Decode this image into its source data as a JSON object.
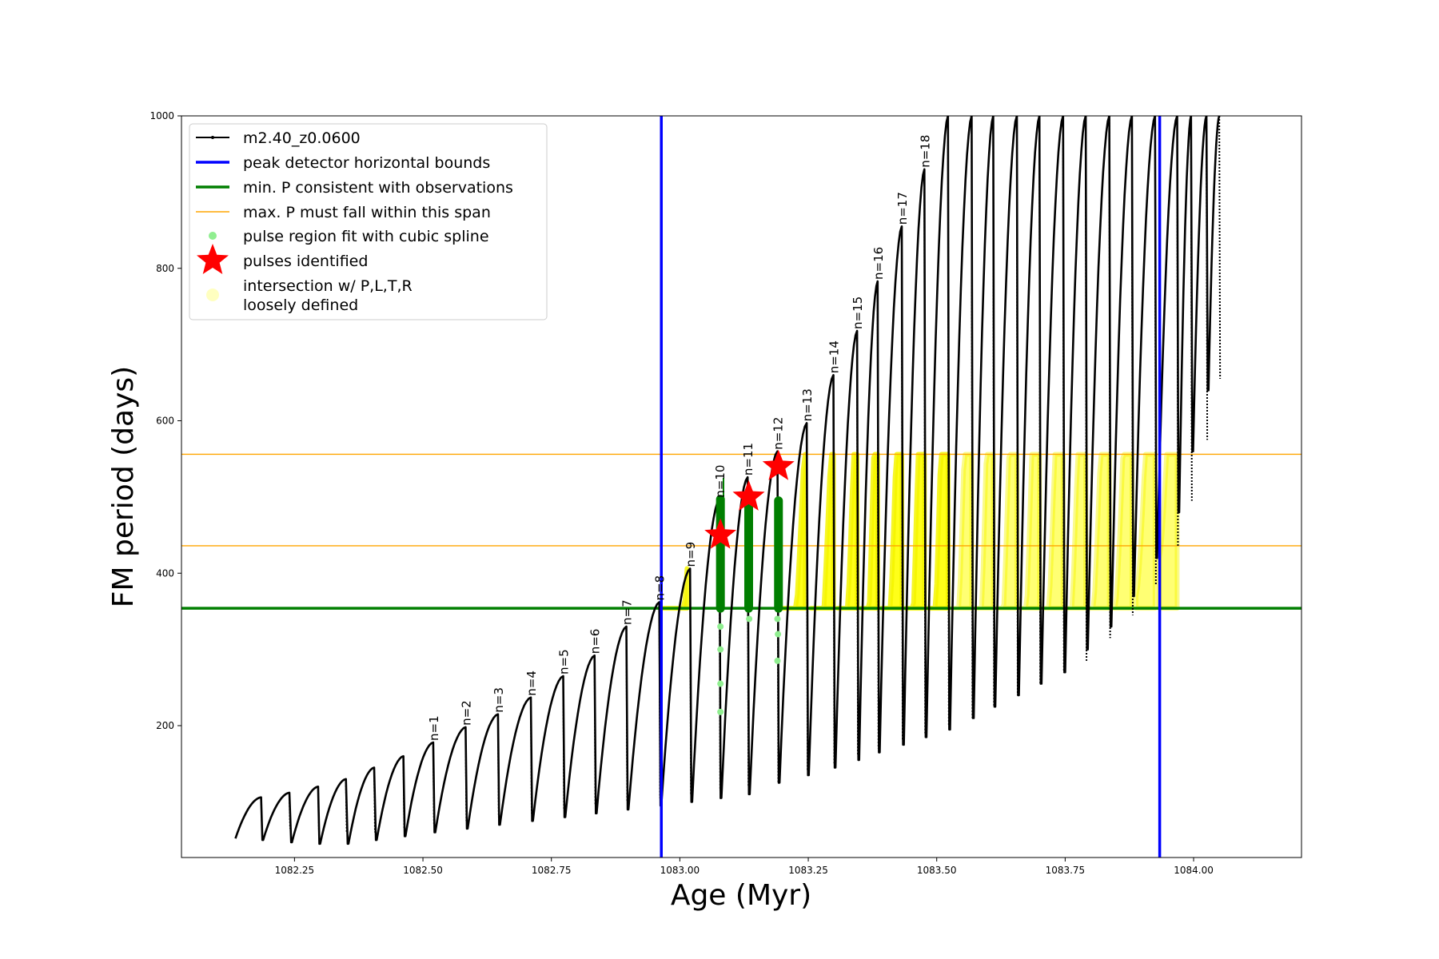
{
  "chart_data": {
    "type": "line",
    "xlabel": "Age (Myr)",
    "ylabel": "FM period (days)",
    "xlim": [
      1082.03,
      1084.21
    ],
    "ylim": [
      27,
      1000
    ],
    "x_ticks": [
      1082.25,
      1082.5,
      1082.75,
      1083.0,
      1083.25,
      1083.5,
      1083.75,
      1084.0
    ],
    "x_tick_labels": [
      "1082.25",
      "1082.50",
      "1082.75",
      "1083.00",
      "1083.25",
      "1083.50",
      "1083.75",
      "1084.00"
    ],
    "y_ticks": [
      200,
      400,
      600,
      800,
      1000
    ],
    "y_tick_labels": [
      "200",
      "400",
      "600",
      "800",
      "1000"
    ],
    "grid": false,
    "legend_position": "top-left",
    "legend": [
      {
        "label": "m2.40_z0.0600",
        "marker": "line-dot",
        "color": "#000000"
      },
      {
        "label": "peak detector horizontal bounds",
        "marker": "line",
        "color": "#0000ff"
      },
      {
        "label": "min. P consistent with observations",
        "marker": "line",
        "color": "#007f00"
      },
      {
        "label": "max. P must fall within this span",
        "marker": "thin-line",
        "color": "#ffa500"
      },
      {
        "label": "pulse region fit with cubic spline",
        "marker": "dot",
        "color": "#90ee90"
      },
      {
        "label": "pulses identified",
        "marker": "star",
        "color": "#ff0000"
      },
      {
        "label": "intersection w/ P,L,T,R",
        "marker": "circle",
        "color": "#ffffc0"
      },
      {
        "label": "loosely defined",
        "marker": "none",
        "color": "#ffffc0"
      }
    ],
    "vertical_lines": [
      {
        "x": 1082.964,
        "color": "#0000ff"
      },
      {
        "x": 1083.934,
        "color": "#0000ff"
      }
    ],
    "horizontal_lines": [
      {
        "y": 354,
        "color": "#007f00",
        "width": "thick"
      },
      {
        "y": 436,
        "color": "#ffa500",
        "width": "thin"
      },
      {
        "y": 556,
        "color": "#ffa500",
        "width": "thin"
      }
    ],
    "series": [
      {
        "name": "m2.40_z0.0600",
        "color": "#000000",
        "pulses": [
          {
            "start": 1082.135,
            "end": 1082.185,
            "min": 52,
            "max": 106
          },
          {
            "start": 1082.189,
            "end": 1082.24,
            "min": 50,
            "max": 112
          },
          {
            "start": 1082.245,
            "end": 1082.296,
            "min": 47,
            "max": 120
          },
          {
            "start": 1082.3,
            "end": 1082.35,
            "min": 45,
            "max": 130
          },
          {
            "start": 1082.355,
            "end": 1082.405,
            "min": 45,
            "max": 145
          },
          {
            "start": 1082.41,
            "end": 1082.462,
            "min": 50,
            "max": 160
          },
          {
            "start": 1082.466,
            "end": 1082.52,
            "min": 55,
            "max": 178,
            "label": "n=1"
          },
          {
            "start": 1082.524,
            "end": 1082.583,
            "min": 60,
            "max": 198,
            "label": "n=2"
          },
          {
            "start": 1082.587,
            "end": 1082.646,
            "min": 65,
            "max": 215,
            "label": "n=3"
          },
          {
            "start": 1082.65,
            "end": 1082.71,
            "min": 70,
            "max": 237,
            "label": "n=4"
          },
          {
            "start": 1082.714,
            "end": 1082.773,
            "min": 75,
            "max": 265,
            "label": "n=5"
          },
          {
            "start": 1082.777,
            "end": 1082.834,
            "min": 80,
            "max": 292,
            "label": "n=6"
          },
          {
            "start": 1082.838,
            "end": 1082.896,
            "min": 85,
            "max": 330,
            "label": "n=7"
          },
          {
            "start": 1082.9,
            "end": 1082.96,
            "min": 90,
            "max": 362,
            "label": "n=8"
          },
          {
            "start": 1082.964,
            "end": 1083.02,
            "min": 95,
            "max": 406,
            "label": "n=9"
          },
          {
            "start": 1083.024,
            "end": 1083.077,
            "min": 100,
            "max": 497,
            "label": "n=10"
          },
          {
            "start": 1083.081,
            "end": 1083.132,
            "min": 105,
            "max": 526,
            "label": "n=11"
          },
          {
            "start": 1083.136,
            "end": 1083.19,
            "min": 110,
            "max": 560,
            "label": "n=12"
          },
          {
            "start": 1083.194,
            "end": 1083.247,
            "min": 125,
            "max": 597,
            "label": "n=13"
          },
          {
            "start": 1083.251,
            "end": 1083.299,
            "min": 135,
            "max": 660,
            "label": "n=14"
          },
          {
            "start": 1083.303,
            "end": 1083.345,
            "min": 145,
            "max": 718,
            "label": "n=15"
          },
          {
            "start": 1083.349,
            "end": 1083.385,
            "min": 155,
            "max": 783,
            "label": "n=16"
          },
          {
            "start": 1083.389,
            "end": 1083.432,
            "min": 165,
            "max": 855,
            "label": "n=17"
          },
          {
            "start": 1083.436,
            "end": 1083.476,
            "min": 175,
            "max": 930,
            "label": "n=18"
          },
          {
            "start": 1083.48,
            "end": 1083.522,
            "min": 185,
            "max": 1000
          },
          {
            "start": 1083.526,
            "end": 1083.568,
            "min": 195,
            "max": 1000
          },
          {
            "start": 1083.572,
            "end": 1083.61,
            "min": 210,
            "max": 1000
          },
          {
            "start": 1083.614,
            "end": 1083.656,
            "min": 225,
            "max": 1000
          },
          {
            "start": 1083.66,
            "end": 1083.7,
            "min": 240,
            "max": 1000
          },
          {
            "start": 1083.704,
            "end": 1083.746,
            "min": 255,
            "max": 1000
          },
          {
            "start": 1083.75,
            "end": 1083.79,
            "min": 270,
            "max": 1000
          },
          {
            "start": 1083.794,
            "end": 1083.836,
            "min": 300,
            "max": 1000
          },
          {
            "start": 1083.84,
            "end": 1083.88,
            "min": 330,
            "max": 1000
          },
          {
            "start": 1083.884,
            "end": 1083.925,
            "min": 370,
            "max": 1000
          },
          {
            "start": 1083.929,
            "end": 1083.968,
            "min": 420,
            "max": 1000
          },
          {
            "start": 1083.972,
            "end": 1083.995,
            "min": 480,
            "max": 1000
          },
          {
            "start": 1083.999,
            "end": 1084.025,
            "min": 560,
            "max": 1000
          },
          {
            "start": 1084.029,
            "end": 1084.05,
            "min": 640,
            "max": 1000
          }
        ]
      },
      {
        "name": "pulses identified",
        "color": "#ff0000",
        "points": [
          {
            "x": 1083.079,
            "y": 450
          },
          {
            "x": 1083.134,
            "y": 500
          },
          {
            "x": 1083.192,
            "y": 540
          }
        ]
      },
      {
        "name": "min. P consistent with observations",
        "color": "#007f00",
        "bars": [
          {
            "x": 1083.079,
            "y0": 354,
            "y1": 497
          },
          {
            "x": 1083.134,
            "y0": 354,
            "y1": 500
          },
          {
            "x": 1083.192,
            "y0": 354,
            "y1": 495
          }
        ]
      },
      {
        "name": "pulse region fit with cubic spline",
        "color": "#90ee90",
        "points": [
          {
            "x": 1083.079,
            "y": 330
          },
          {
            "x": 1083.079,
            "y": 300
          },
          {
            "x": 1083.079,
            "y": 255
          },
          {
            "x": 1083.079,
            "y": 218
          },
          {
            "x": 1083.135,
            "y": 340
          },
          {
            "x": 1083.19,
            "y": 340
          },
          {
            "x": 1083.191,
            "y": 320
          },
          {
            "x": 1083.19,
            "y": 285
          }
        ]
      }
    ]
  }
}
